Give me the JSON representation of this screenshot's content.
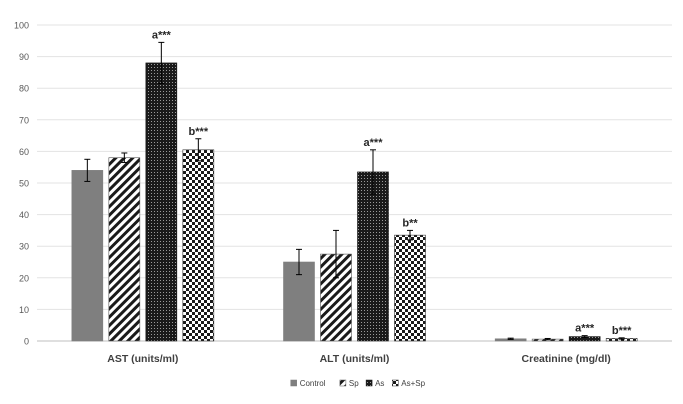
{
  "chart_data": {
    "type": "bar",
    "categories": [
      "AST (units/ml)",
      "ALT (units/ml)",
      "Creatinine (mg/dl)"
    ],
    "series": [
      {
        "name": "Control",
        "values": [
          54,
          25,
          0.7
        ],
        "errors": [
          3.5,
          4,
          0.2
        ],
        "annotations": [
          "",
          "",
          ""
        ]
      },
      {
        "name": "Sp",
        "values": [
          58,
          27.5,
          0.6
        ],
        "errors": [
          1.5,
          7.5,
          0.2
        ],
        "annotations": [
          "",
          "",
          ""
        ]
      },
      {
        "name": "As",
        "values": [
          88,
          53.5,
          1.4
        ],
        "errors": [
          6.5,
          7,
          0.3
        ],
        "annotations": [
          "a***",
          "a***",
          "a***"
        ]
      },
      {
        "name": "As+Sp",
        "values": [
          60.5,
          33.5,
          0.8
        ],
        "errors": [
          3.5,
          1.5,
          0.2
        ],
        "annotations": [
          "b***",
          "b**",
          "b***"
        ]
      }
    ],
    "yticks": [
      0,
      10,
      20,
      30,
      40,
      50,
      60,
      70,
      80,
      90,
      100
    ],
    "ylim": [
      0,
      100
    ],
    "grid": true,
    "legend_position": "bottom"
  }
}
